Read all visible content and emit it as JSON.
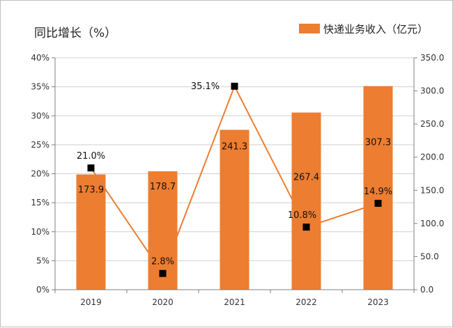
{
  "chart_data": {
    "type": "bar",
    "categories": [
      "2019",
      "2020",
      "2021",
      "2022",
      "2023"
    ],
    "title": "",
    "left_axis_title": "同比增长（%）",
    "legend": {
      "bar_label": "快递业务收入（亿元）",
      "placement": "top-right"
    },
    "series": [
      {
        "name": "快递业务收入（亿元）",
        "type": "bar",
        "axis": "right",
        "values": [
          173.9,
          178.7,
          241.3,
          267.4,
          307.3
        ],
        "labels": [
          "173.9",
          "178.7",
          "241.3",
          "267.4",
          "307.3"
        ],
        "color": "#ED7D31"
      },
      {
        "type": "line",
        "axis": "left",
        "values": [
          21.0,
          2.8,
          35.1,
          10.8,
          14.9
        ],
        "labels": [
          "21.0%",
          "2.8%",
          "35.1%",
          "10.8%",
          "14.9%"
        ],
        "line_color": "#ED7D31",
        "marker_color": "#000000"
      }
    ],
    "y_left": {
      "range": [
        0,
        40
      ],
      "ticks": [
        0,
        5,
        10,
        15,
        20,
        25,
        30,
        35,
        40
      ],
      "tick_labels": [
        "0%",
        "5%",
        "10%",
        "15%",
        "20%",
        "25%",
        "30%",
        "35%",
        "40%"
      ]
    },
    "y_right": {
      "range": [
        0,
        350
      ],
      "ticks": [
        0,
        50,
        100,
        150,
        200,
        250,
        300,
        350
      ],
      "tick_labels": [
        "0.0",
        "50.0",
        "100.0",
        "150.0",
        "200.0",
        "250.0",
        "300.0",
        "350.0"
      ]
    },
    "grid": true
  }
}
